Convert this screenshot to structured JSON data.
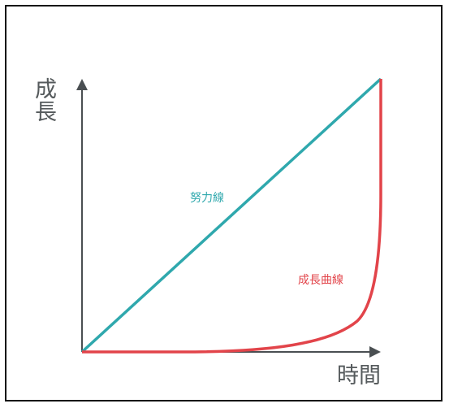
{
  "diagram": {
    "y_axis_label_line1": "成",
    "y_axis_label_line2": "長",
    "x_axis_label": "時間",
    "effort_line_label": "努力線",
    "growth_curve_label": "成長曲線"
  },
  "colors": {
    "axis": "#4a4f52",
    "effort_line": "#2fa8ad",
    "growth_curve": "#e2444a",
    "axis_label": "#555a5c"
  },
  "chart_data": {
    "type": "line",
    "title": "",
    "xlabel": "時間",
    "ylabel": "成長",
    "series": [
      {
        "name": "努力線",
        "x": [
          0,
          1
        ],
        "y": [
          0,
          1
        ]
      },
      {
        "name": "成長曲線",
        "x": [
          0,
          0.2,
          0.4,
          0.6,
          0.8,
          0.9,
          0.95,
          0.98,
          1.0,
          1.0
        ],
        "y": [
          0,
          0.0,
          0.005,
          0.02,
          0.07,
          0.15,
          0.28,
          0.5,
          0.8,
          1.0
        ]
      }
    ],
    "xlim": [
      0,
      1
    ],
    "ylim": [
      0,
      1
    ],
    "grid": false,
    "legend": "none"
  }
}
